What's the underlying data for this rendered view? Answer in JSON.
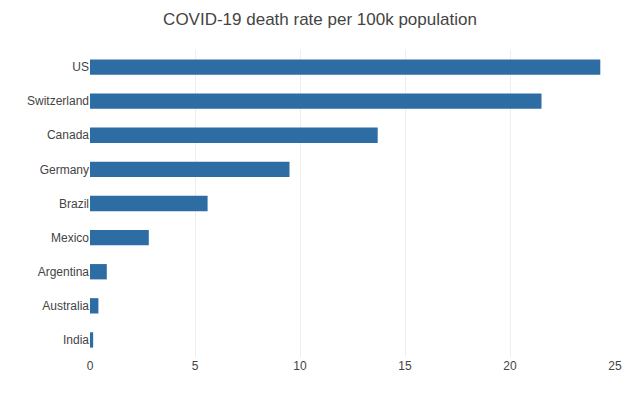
{
  "chart_data": {
    "type": "bar",
    "orientation": "horizontal",
    "title": "COVID-19 death rate per 100k population",
    "categories": [
      "India",
      "Australia",
      "Argentina",
      "Mexico",
      "Brazil",
      "Germany",
      "Canada",
      "Switzerland",
      "US"
    ],
    "values": [
      0.15,
      0.4,
      0.8,
      2.8,
      5.6,
      9.5,
      13.7,
      21.5,
      24.3
    ],
    "color": "#2E6DA4",
    "xlim": [
      0,
      25
    ],
    "xticks": [
      0,
      5,
      10,
      15,
      20,
      25
    ],
    "grid": true
  }
}
